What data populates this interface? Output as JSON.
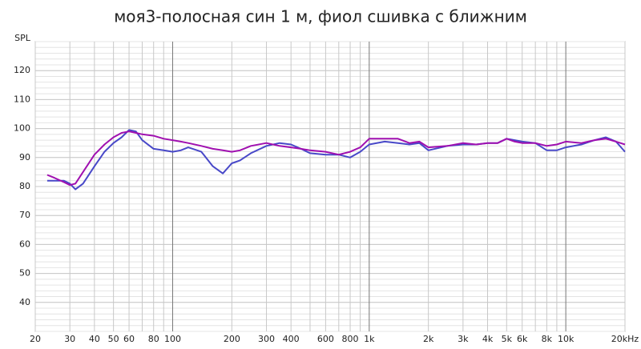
{
  "chart_data": {
    "type": "line",
    "title": "моя3-полосная син 1 м, фиол сшивка с ближним",
    "y_label": "SPL",
    "xscale": "log",
    "grid": true,
    "xlim": [
      20,
      20000
    ],
    "ylim": [
      30,
      130
    ],
    "yticks": [
      40,
      50,
      60,
      70,
      80,
      90,
      100,
      110,
      120
    ],
    "xticks": [
      20,
      30,
      40,
      50,
      60,
      80,
      100,
      200,
      300,
      400,
      600,
      800,
      {
        "value": 1000,
        "label": "1k"
      },
      {
        "value": 2000,
        "label": "2k"
      },
      {
        "value": 3000,
        "label": "3k"
      },
      {
        "value": 4000,
        "label": "4k"
      },
      {
        "value": 5000,
        "label": "5k"
      },
      {
        "value": 6000,
        "label": "6k"
      },
      {
        "value": 8000,
        "label": "8k"
      },
      {
        "value": 10000,
        "label": "10k"
      },
      {
        "value": 20000,
        "label": "20kHz"
      }
    ],
    "xminorticks": [
      70,
      90,
      500,
      700,
      900,
      7000,
      9000
    ],
    "x": [
      23,
      25,
      28,
      30,
      32,
      35,
      40,
      45,
      50,
      55,
      60,
      65,
      70,
      80,
      90,
      100,
      110,
      120,
      140,
      160,
      180,
      200,
      220,
      250,
      300,
      350,
      400,
      450,
      500,
      600,
      700,
      800,
      900,
      1000,
      1200,
      1400,
      1600,
      1800,
      2000,
      2500,
      3000,
      3500,
      4000,
      4500,
      5000,
      5500,
      6000,
      7000,
      8000,
      9000,
      10000,
      12000,
      14000,
      16000,
      18000,
      20000
    ],
    "series": [
      {
        "color": "#4848c8",
        "values": [
          82,
          82,
          82,
          81,
          79,
          81,
          87,
          92,
          95,
          97,
          99.5,
          99,
          96,
          93,
          92.5,
          92,
          92.5,
          93.5,
          92,
          87,
          84.5,
          88,
          89,
          91.5,
          94,
          95,
          94.5,
          93,
          91.5,
          91,
          91,
          90,
          92,
          94.5,
          95.5,
          95,
          94.5,
          95,
          92.5,
          94,
          94.5,
          94.5,
          95,
          95,
          96.5,
          96,
          95.5,
          95,
          92.5,
          92.5,
          93.5,
          94.5,
          96,
          97,
          95.5,
          92
        ]
      },
      {
        "color": "#a010b0",
        "values": [
          84,
          83,
          81.5,
          80.5,
          81,
          85,
          91,
          94.5,
          97,
          98.5,
          99,
          98.5,
          98,
          97.5,
          96.5,
          96,
          95.5,
          95,
          94,
          93,
          92.5,
          92,
          92.5,
          94,
          95,
          94,
          93.5,
          93,
          92.5,
          92,
          91,
          92,
          93.5,
          96.5,
          96.5,
          96.5,
          95,
          95.5,
          93.5,
          94,
          95,
          94.5,
          95,
          95,
          96.5,
          95.5,
          95,
          95,
          94,
          94.5,
          95.5,
          95,
          96,
          96.5,
          95.5,
          94.5
        ]
      }
    ]
  }
}
